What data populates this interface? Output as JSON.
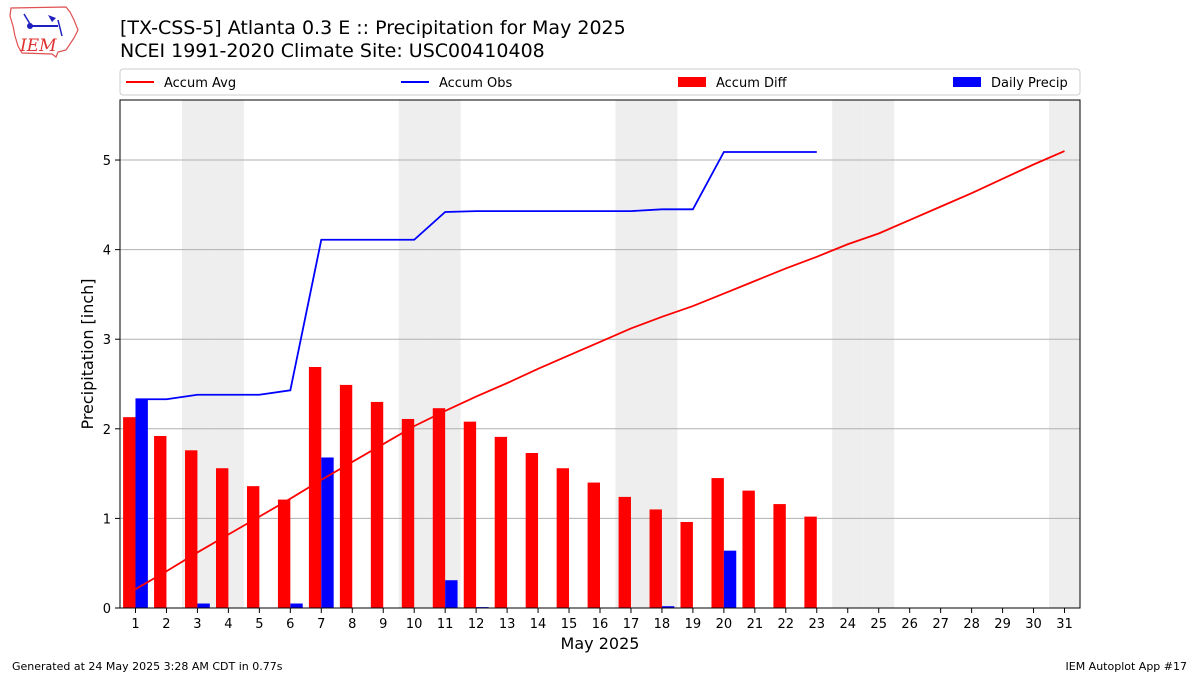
{
  "header": {
    "title_line1": "[TX-CSS-5] Atlanta 0.3 E :: Precipitation for May 2025",
    "title_line2": "NCEI 1991-2020 Climate Site: USC00410408"
  },
  "logo": {
    "text": "IEM",
    "icon": "iowa-state-outline-logo"
  },
  "footer": {
    "left": "Generated at 24 May 2025 3:28 AM CDT in 0.77s",
    "right": "IEM Autoplot App #17"
  },
  "chart_data": {
    "type": "bar",
    "xlabel": "May 2025",
    "ylabel": "Precipitation [inch]",
    "xlim": [
      0.5,
      31.5
    ],
    "ylim": [
      0,
      5.67
    ],
    "yticks": [
      0,
      1,
      2,
      3,
      4,
      5
    ],
    "grid": "horizontal",
    "legend_position": "top",
    "weekend_days_shaded": [
      3,
      4,
      10,
      11,
      17,
      18,
      24,
      25,
      31
    ],
    "categories": [
      1,
      2,
      3,
      4,
      5,
      6,
      7,
      8,
      9,
      10,
      11,
      12,
      13,
      14,
      15,
      16,
      17,
      18,
      19,
      20,
      21,
      22,
      23,
      24,
      25,
      26,
      27,
      28,
      29,
      30,
      31
    ],
    "series": [
      {
        "name": "Accum Avg",
        "kind": "line",
        "color": "#ff0000",
        "x": [
          1,
          2,
          3,
          4,
          5,
          6,
          7,
          8,
          9,
          10,
          11,
          12,
          13,
          14,
          15,
          16,
          17,
          18,
          19,
          20,
          21,
          22,
          23,
          24,
          25,
          26,
          27,
          28,
          29,
          30,
          31
        ],
        "values": [
          0.21,
          0.41,
          0.62,
          0.82,
          1.02,
          1.22,
          1.43,
          1.63,
          1.83,
          2.03,
          2.2,
          2.36,
          2.51,
          2.67,
          2.82,
          2.97,
          3.12,
          3.25,
          3.37,
          3.51,
          3.65,
          3.79,
          3.92,
          4.06,
          4.18,
          4.33,
          4.48,
          4.63,
          4.79,
          4.95,
          5.1
        ]
      },
      {
        "name": "Accum Obs",
        "kind": "line",
        "color": "#0000ff",
        "x": [
          1,
          2,
          3,
          4,
          5,
          6,
          7,
          8,
          9,
          10,
          11,
          12,
          13,
          14,
          15,
          16,
          17,
          18,
          19,
          20,
          21,
          22,
          23
        ],
        "values": [
          2.33,
          2.33,
          2.38,
          2.38,
          2.38,
          2.43,
          4.11,
          4.11,
          4.11,
          4.11,
          4.42,
          4.43,
          4.43,
          4.43,
          4.43,
          4.43,
          4.43,
          4.45,
          4.45,
          5.09,
          5.09,
          5.09,
          5.09
        ]
      },
      {
        "name": "Accum Diff",
        "kind": "bar",
        "color": "#ff0000",
        "x": [
          1,
          2,
          3,
          4,
          5,
          6,
          7,
          8,
          9,
          10,
          11,
          12,
          13,
          14,
          15,
          16,
          17,
          18,
          19,
          20,
          21,
          22,
          23
        ],
        "values": [
          2.13,
          1.92,
          1.76,
          1.56,
          1.36,
          1.21,
          2.69,
          2.49,
          2.3,
          2.11,
          2.23,
          2.08,
          1.91,
          1.73,
          1.56,
          1.4,
          1.24,
          1.1,
          0.96,
          1.45,
          1.31,
          1.16,
          1.02
        ]
      },
      {
        "name": "Daily Precip",
        "kind": "bar",
        "color": "#0000ff",
        "x": [
          1,
          2,
          3,
          4,
          5,
          6,
          7,
          8,
          9,
          10,
          11,
          12,
          13,
          14,
          15,
          16,
          17,
          18,
          19,
          20,
          21,
          22,
          23
        ],
        "values": [
          2.33,
          0,
          0.05,
          0,
          0,
          0.05,
          1.68,
          0,
          0,
          0,
          0.31,
          0.01,
          0,
          0,
          0,
          0,
          0,
          0.02,
          0,
          0.64,
          0,
          0,
          0
        ]
      }
    ]
  }
}
